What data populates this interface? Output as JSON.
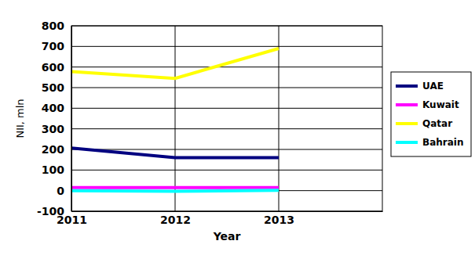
{
  "chart_data": {
    "type": "line",
    "x_label": "Year",
    "y_label": "NII, mln",
    "x": [
      2011,
      2012,
      2013
    ],
    "xlim": [
      2011,
      2014
    ],
    "xticks": [
      2011,
      2012,
      2013
    ],
    "ylim": [
      -100,
      800
    ],
    "yticks": [
      -100,
      0,
      100,
      200,
      300,
      400,
      500,
      600,
      700,
      800
    ],
    "grid": true,
    "legend": "right",
    "series": [
      {
        "name": "UAE",
        "color": "#000080",
        "values": [
          207,
          160,
          160
        ]
      },
      {
        "name": "Kuwait",
        "color": "#ff00ff",
        "values": [
          15,
          15,
          15
        ]
      },
      {
        "name": "Qatar",
        "color": "#ffff00",
        "values": [
          578,
          545,
          690
        ]
      },
      {
        "name": "Bahrain",
        "color": "#00ffff",
        "values": [
          0,
          -3,
          2
        ]
      }
    ]
  }
}
